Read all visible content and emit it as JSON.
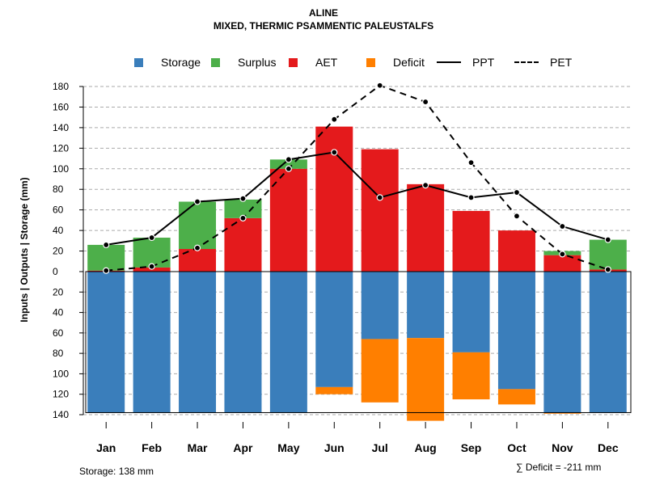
{
  "title": "ALINE",
  "subtitle": "MIXED, THERMIC PSAMMENTIC PALEUSTALFS",
  "legend": {
    "storage": "Storage",
    "surplus": "Surplus",
    "aet": "AET",
    "deficit": "Deficit",
    "ppt": "PPT",
    "pet": "PET"
  },
  "colors": {
    "storage": "#3A7EBB",
    "surplus": "#4DAF4A",
    "aet": "#E41A1C",
    "deficit": "#FF7F00",
    "line": "#000000",
    "grid": "#AAAAAA"
  },
  "ylabel": "Inputs | Outputs | Storage    (mm)",
  "storage_note": "Storage: 138 mm",
  "deficit_note": "∑ Deficit = -211 mm",
  "chart_data": {
    "type": "bar",
    "categories": [
      "Jan",
      "Feb",
      "Mar",
      "Apr",
      "May",
      "Jun",
      "Jul",
      "Aug",
      "Sep",
      "Oct",
      "Nov",
      "Dec"
    ],
    "upper_ylim": [
      0,
      180
    ],
    "lower_ylim": [
      0,
      140
    ],
    "upper_ticks": [
      0,
      20,
      40,
      60,
      80,
      100,
      120,
      140,
      160,
      180
    ],
    "lower_ticks": [
      20,
      40,
      60,
      80,
      100,
      120,
      140
    ],
    "series": [
      {
        "name": "AET",
        "values": [
          1,
          4,
          22,
          52,
          100,
          141,
          119,
          85,
          59,
          40,
          16,
          2
        ]
      },
      {
        "name": "Surplus",
        "values": [
          25,
          29,
          46,
          18,
          9,
          0,
          0,
          0,
          0,
          0,
          4,
          29
        ]
      },
      {
        "name": "Storage",
        "values": [
          138,
          138,
          138,
          138,
          138,
          113,
          66,
          65,
          79,
          115,
          138,
          138
        ]
      },
      {
        "name": "Deficit",
        "values": [
          0,
          0,
          0,
          0,
          0,
          7,
          62,
          81,
          46,
          15,
          1,
          0
        ]
      },
      {
        "name": "PPT",
        "values": [
          26,
          33,
          68,
          71,
          109,
          116,
          72,
          84,
          72,
          77,
          44,
          31
        ]
      },
      {
        "name": "PET",
        "values": [
          1,
          5,
          23,
          52,
          100,
          148,
          181,
          165,
          106,
          54,
          17,
          2
        ]
      }
    ]
  }
}
